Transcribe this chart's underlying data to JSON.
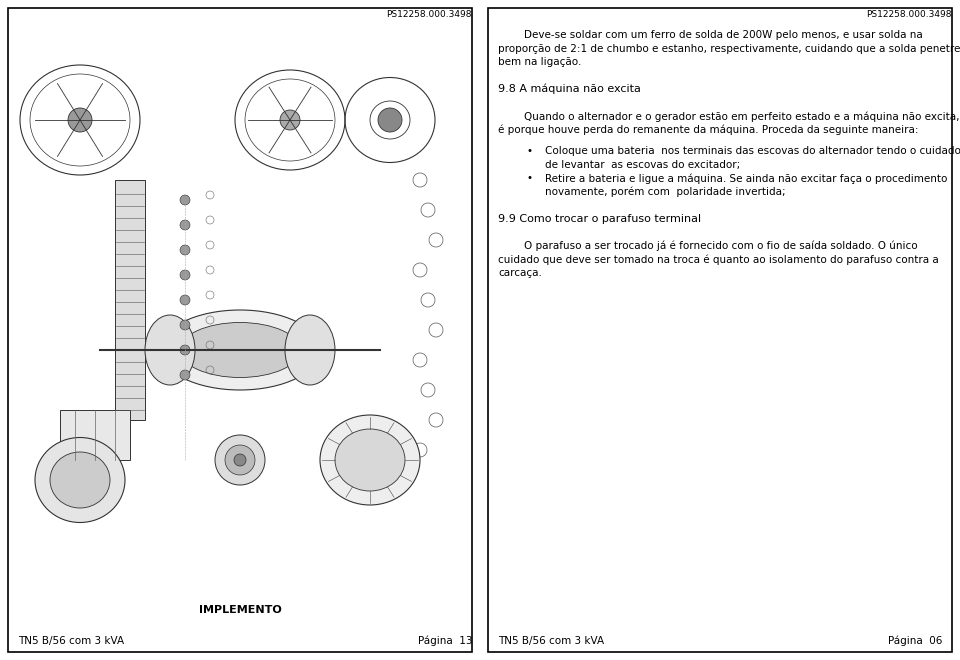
{
  "bg_color": "#ffffff",
  "border_color": "#000000",
  "text_color": "#000000",
  "page_width": 9.6,
  "page_height": 6.6,
  "dpi": 100,
  "left_panel": {
    "ref_code": "PS12258.000.3498",
    "label_implemento": "IMPLEMENTO",
    "footer_left": "TN5 B/56 com 3 kVA",
    "footer_right": "Página  13"
  },
  "right_panel": {
    "ref_code": "PS12258.000.3498",
    "intro_indent": "        Deve-se soldar com um ferro de solda de 200W pelo menos, e usar solda na",
    "intro_line2": "proporção de 2:1 de chumbo e estanho, respectivamente, cuidando que a solda penetre",
    "intro_line3": "bem na ligação.",
    "section_title": "9.8 A máquina não excita",
    "body_line1": "        Quando o alternador e o gerador estão em perfeito estado e a máquina não excita,",
    "body_line2": "é porque houve perda do remanente da máquina. Proceda da seguinte maneira:",
    "bullet1_line1": "Coloque uma bateria  nos terminais das escovas do alternador tendo o cuidado",
    "bullet1_line2": "de levantar  as escovas do excitador;",
    "bullet2_line1": "Retire a bateria e ligue a máquina. Se ainda não excitar faça o procedimento",
    "bullet2_line2": "novamente, porém com  polaridade invertida;",
    "section_title2": "9.9 Como trocar o parafuso terminal",
    "body2_line1": "        O parafuso a ser trocado já é fornecido com o fio de saída soldado. O único",
    "body2_line2": "cuidado que deve ser tomado na troca é quanto ao isolamento do parafuso contra a",
    "body2_line3": "carcaça.",
    "footer_left": "TN5 B/56 com 3 kVA",
    "footer_right": "Página  06",
    "bullet_char": "•"
  }
}
